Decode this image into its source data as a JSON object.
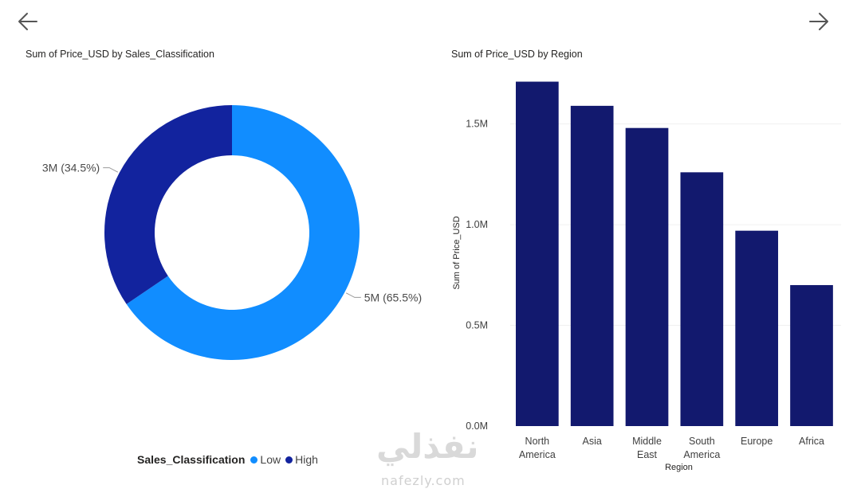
{
  "icons": {
    "back": "arrow-left-icon",
    "forward": "arrow-right-icon"
  },
  "watermark": {
    "arabic": "نفذلي",
    "latin": "nafezly.com"
  },
  "donut": {
    "title": "Sum of Price_USD by Sales_Classification",
    "legend_title": "Sales_Classification",
    "colors": {
      "Low": "#118dff",
      "High": "#12239e"
    },
    "chart_data": {
      "type": "pie",
      "donut": true,
      "title": "Sum of Price_USD by Sales_Classification",
      "legend": "bottom",
      "slices": [
        {
          "name": "Low",
          "value": 5,
          "percent": 65.5,
          "label": "5M (65.5%)"
        },
        {
          "name": "High",
          "value": 3,
          "percent": 34.5,
          "label": "3M (34.5%)"
        }
      ]
    }
  },
  "bar": {
    "title": "Sum of Price_USD by Region",
    "color": "#12196e",
    "chart_data": {
      "type": "bar",
      "title": "Sum of Price_USD by Region",
      "xlabel": "Region",
      "ylabel": "Sum of Price_USD",
      "ylim": [
        0,
        1.72
      ],
      "yticks": [
        0,
        0.5,
        1.0,
        1.5
      ],
      "ytick_labels": [
        "0.0M",
        "0.5M",
        "1.0M",
        "1.5M"
      ],
      "grid": true,
      "categories": [
        [
          "North",
          "America"
        ],
        [
          "Asia"
        ],
        [
          "Middle",
          "East"
        ],
        [
          "South",
          "America"
        ],
        [
          "Europe"
        ],
        [
          "Africa"
        ]
      ],
      "values": [
        1.71,
        1.59,
        1.48,
        1.26,
        0.97,
        0.7
      ]
    }
  }
}
